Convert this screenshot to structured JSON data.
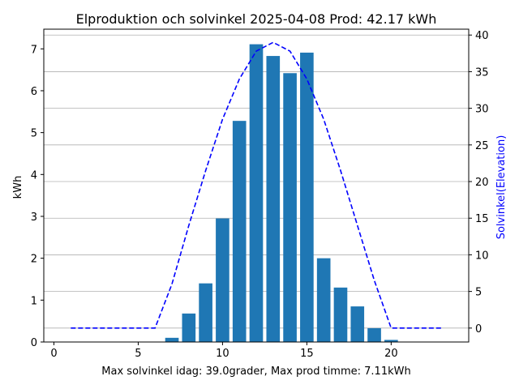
{
  "chart_data": {
    "type": "bar",
    "title": "Elproduktion och solvinkel 2025-04-08 Prod: 42.17 kWh",
    "xlabel": "Max solvinkel idag: 39.0grader, Max prod timme: 7.11kWh",
    "ylabel": "kWh",
    "y2label": "Solvinkel(Elevation)",
    "xlim": [
      -0.6,
      24.6
    ],
    "ylim": [
      0,
      7.47
    ],
    "y2lim": [
      -1.9,
      40.8
    ],
    "xticks": [
      0,
      5,
      10,
      15,
      20
    ],
    "yticks": [
      0,
      1,
      2,
      3,
      4,
      5,
      6,
      7
    ],
    "y2ticks": [
      0,
      5,
      10,
      15,
      20,
      25,
      30,
      35,
      40
    ],
    "grid": "horizontal, secondary axis",
    "colors": {
      "bars": "#1f77b4",
      "elevation_line": "#0000ff",
      "y2label": "#0000ff",
      "grid": "#b0b0b0"
    },
    "series": [
      {
        "kind": "bar",
        "axis": "left",
        "x": [
          7,
          8,
          9,
          10,
          11,
          12,
          13,
          14,
          15,
          16,
          17,
          18,
          19,
          20
        ],
        "values": [
          0.1,
          0.68,
          1.4,
          2.95,
          5.28,
          7.11,
          6.83,
          6.42,
          6.91,
          2.0,
          1.3,
          0.85,
          0.33,
          0.05
        ]
      },
      {
        "kind": "line",
        "axis": "right",
        "style": "dashed",
        "x": [
          1,
          2,
          3,
          4,
          5,
          6,
          7,
          8,
          9,
          10,
          11,
          12,
          13,
          14,
          15,
          16,
          17,
          18,
          19,
          20,
          21,
          22,
          23
        ],
        "values": [
          0,
          0,
          0,
          0,
          0,
          0,
          6,
          14,
          21.5,
          28.5,
          34,
          37.8,
          39.0,
          37.8,
          34,
          28.5,
          21.5,
          14,
          6.5,
          0,
          0,
          0,
          0
        ]
      }
    ]
  }
}
